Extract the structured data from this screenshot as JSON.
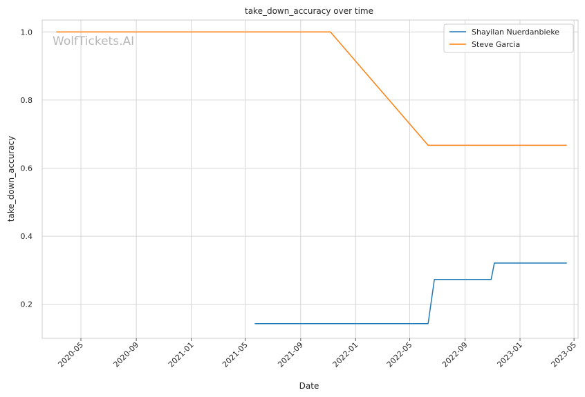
{
  "chart_data": {
    "type": "line",
    "title": "take_down_accuracy over time",
    "xlabel": "Date",
    "ylabel": "take_down_accuracy",
    "watermark": "WolfTickets.AI",
    "xlim": [
      "2020-02-05",
      "2023-05-10"
    ],
    "ylim": [
      0.1,
      1.035
    ],
    "x_ticks": [
      "2020-05",
      "2020-09",
      "2021-01",
      "2021-05",
      "2021-09",
      "2022-01",
      "2022-05",
      "2022-09",
      "2023-01",
      "2023-05"
    ],
    "y_ticks": [
      0.2,
      0.4,
      0.6,
      0.8,
      1.0
    ],
    "y_tick_labels": [
      "0.2",
      "0.4",
      "0.6",
      "0.8",
      "1.0"
    ],
    "grid": true,
    "legend_position": "top-right",
    "series": [
      {
        "name": "Shayilan Nuerdanbieke",
        "color": "#1f77b4",
        "points": [
          {
            "x": "2021-05-22",
            "y": 0.143
          },
          {
            "x": "2022-06-11",
            "y": 0.143
          },
          {
            "x": "2022-06-25",
            "y": 0.273
          },
          {
            "x": "2022-10-29",
            "y": 0.273
          },
          {
            "x": "2022-11-05",
            "y": 0.321
          },
          {
            "x": "2023-04-15",
            "y": 0.321
          }
        ]
      },
      {
        "name": "Steve Garcia",
        "color": "#ff7f0e",
        "points": [
          {
            "x": "2020-03-07",
            "y": 1.0
          },
          {
            "x": "2021-11-06",
            "y": 1.0
          },
          {
            "x": "2022-06-11",
            "y": 0.667
          },
          {
            "x": "2023-04-15",
            "y": 0.667
          }
        ]
      }
    ]
  }
}
